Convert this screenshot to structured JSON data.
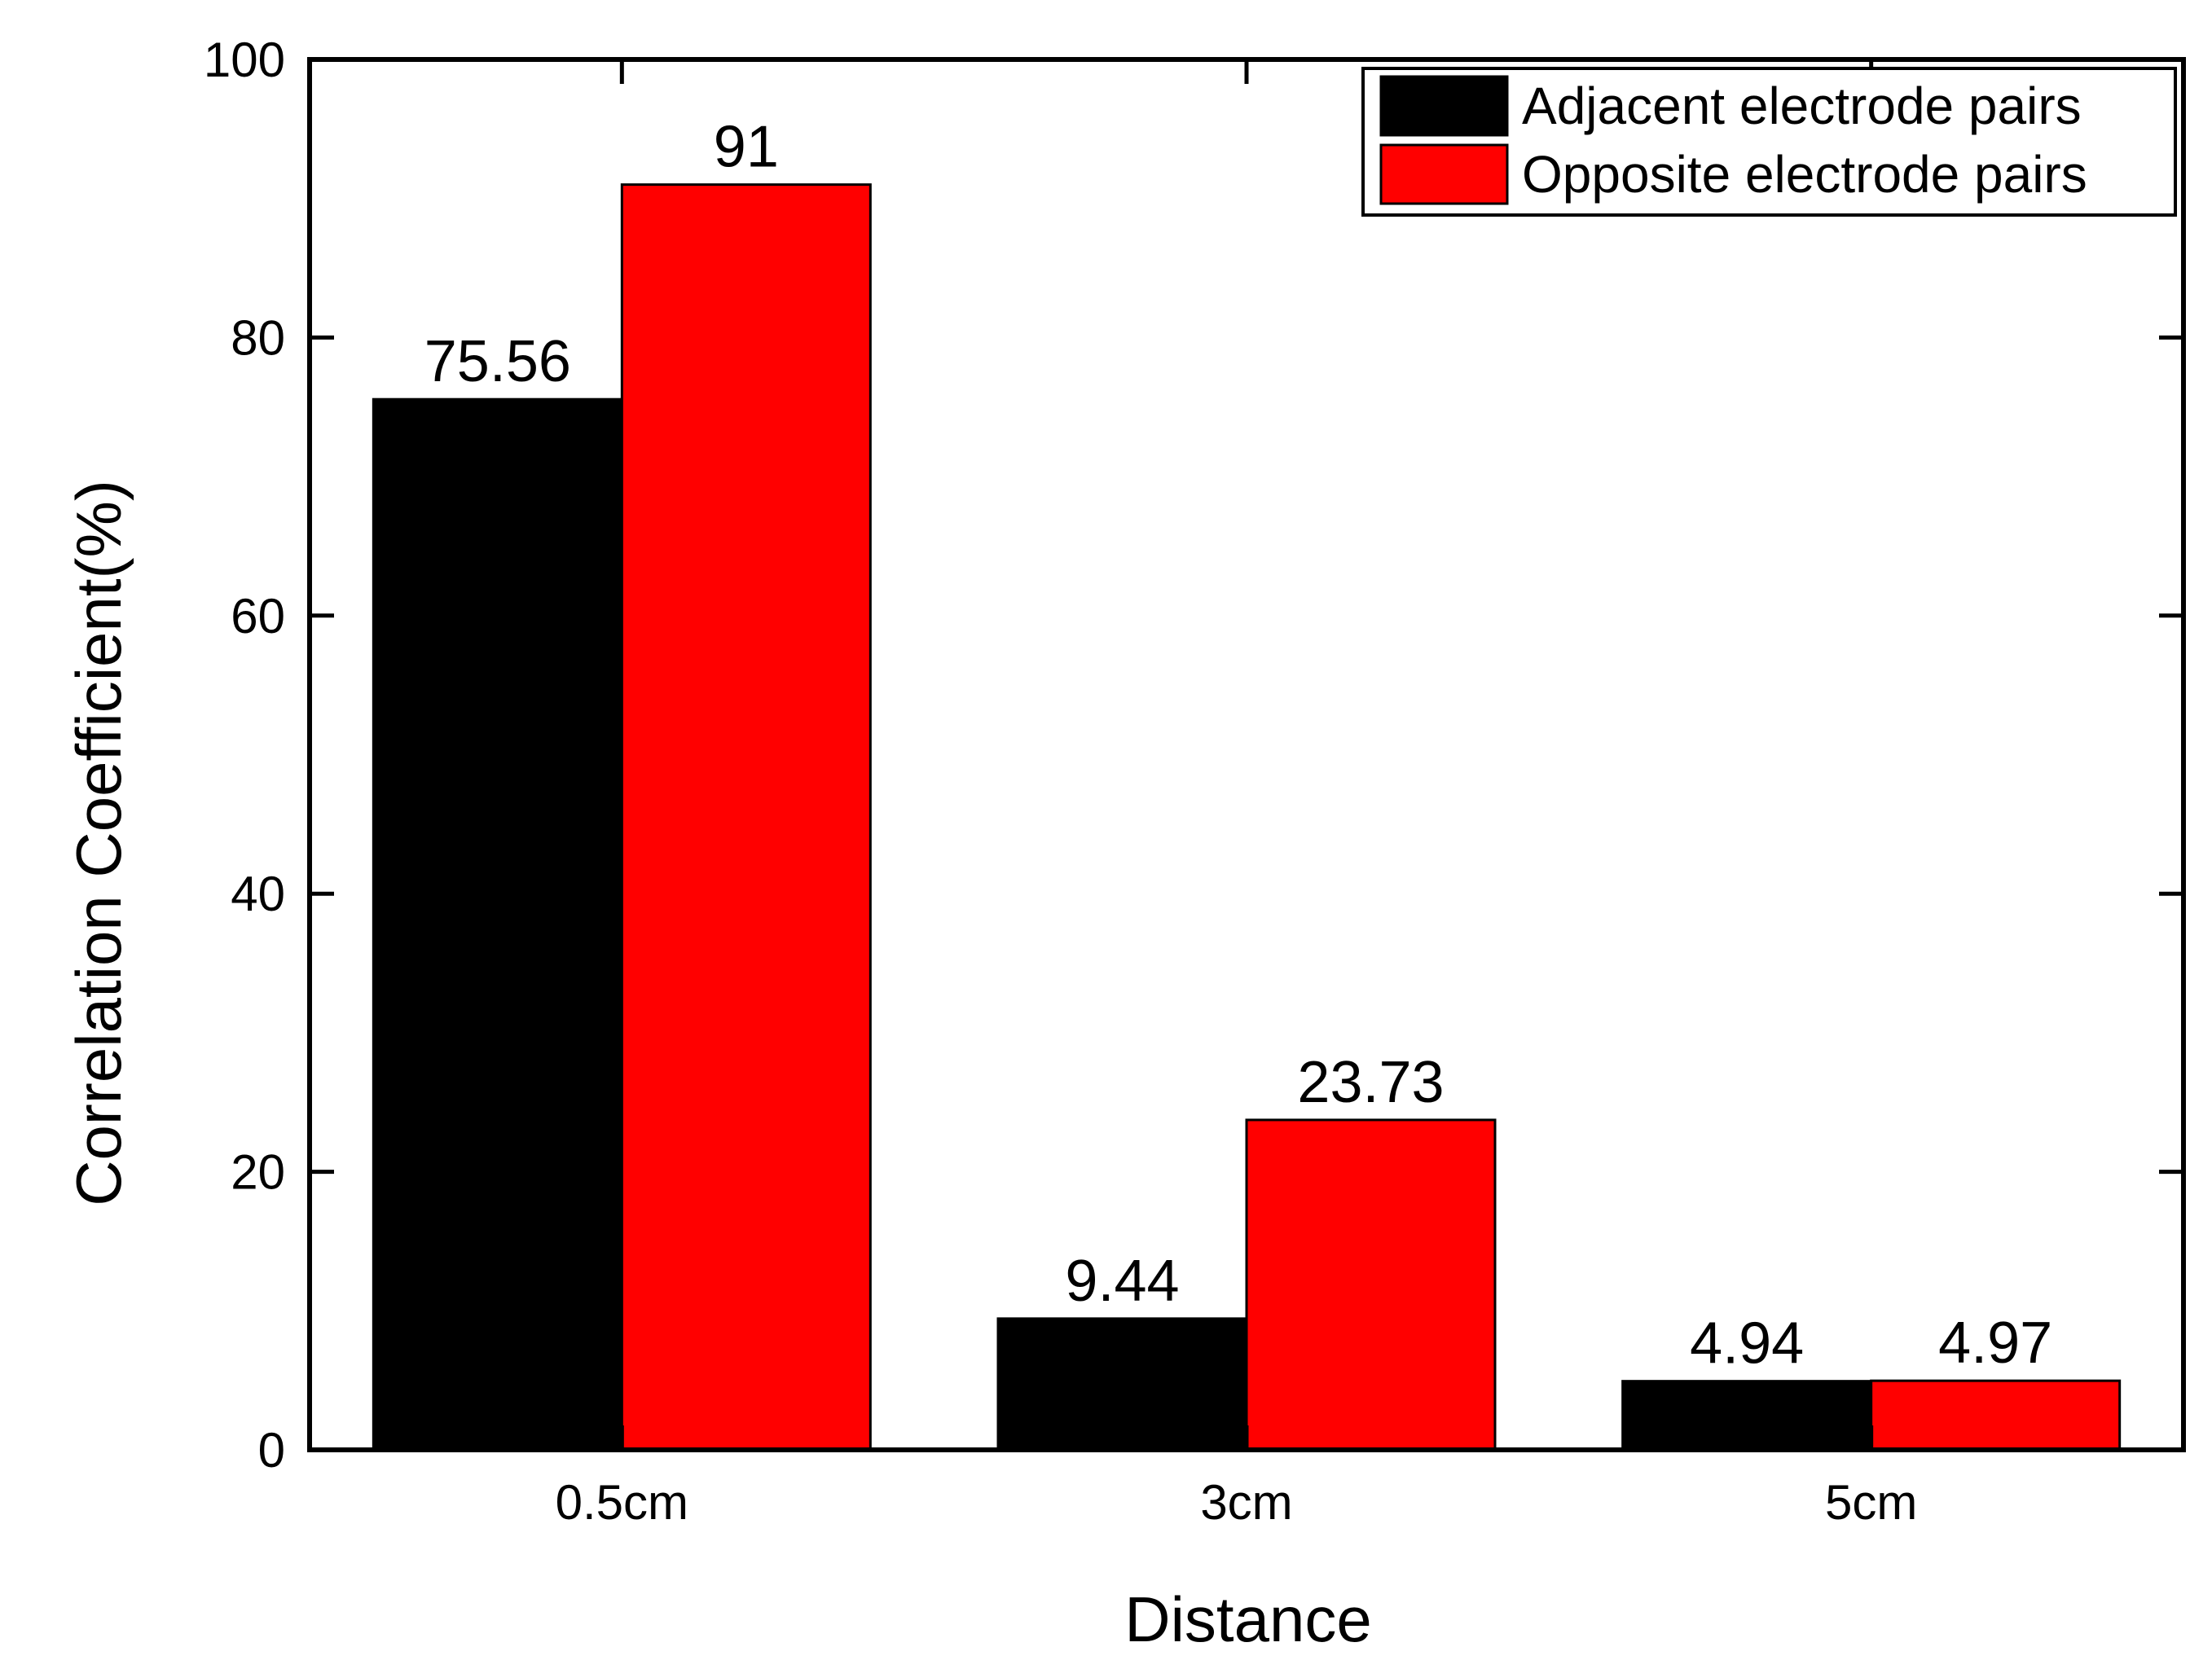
{
  "chart_data": {
    "type": "bar",
    "title": "",
    "xlabel": "Distance",
    "ylabel": "Correlation Coefficient(%)",
    "ylim": [
      0,
      100
    ],
    "yticks": [
      "0",
      "20",
      "40",
      "60",
      "80",
      "100"
    ],
    "grid": false,
    "legend_position": "top-right",
    "categories": [
      "0.5cm",
      "3cm",
      "5cm"
    ],
    "series": [
      {
        "name": "Adjacent electrode pairs",
        "color": "#000000",
        "values": [
          75.56,
          9.44,
          4.94
        ],
        "labels": [
          "75.56",
          "9.44",
          "4.94"
        ]
      },
      {
        "name": "Opposite electrode pairs",
        "color": "#ff0000",
        "values": [
          91,
          23.73,
          4.97
        ],
        "labels": [
          "91",
          "23.73",
          "4.97"
        ]
      }
    ]
  }
}
